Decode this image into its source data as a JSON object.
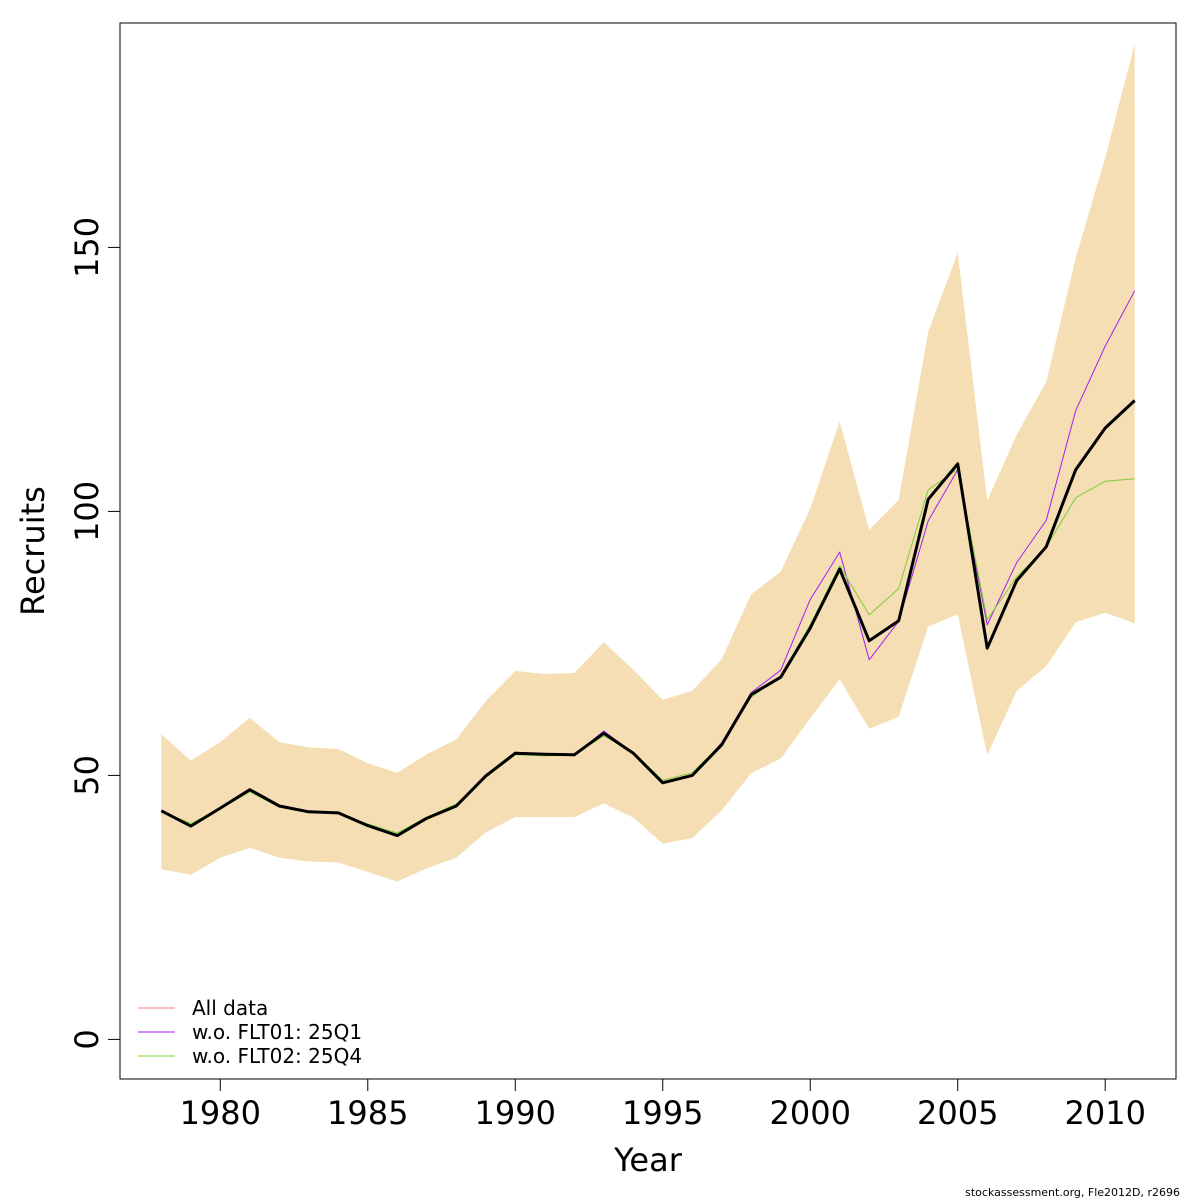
{
  "chart_data": {
    "type": "line",
    "xlabel": "Year",
    "ylabel": "Recruits",
    "xlim": [
      1976.6,
      2012.4
    ],
    "ylim": [
      -7.5,
      192.5
    ],
    "x_ticks": [
      1980,
      1985,
      1990,
      1995,
      2000,
      2005,
      2010
    ],
    "y_ticks": [
      0,
      50,
      100,
      150
    ],
    "x": [
      1978,
      1979,
      1980,
      1981,
      1982,
      1983,
      1984,
      1985,
      1986,
      1987,
      1988,
      1989,
      1990,
      1991,
      1992,
      1993,
      1994,
      1995,
      1996,
      1997,
      1998,
      1999,
      2000,
      2001,
      2002,
      2003,
      2004,
      2005,
      2006,
      2007,
      2008,
      2009,
      2010,
      2011
    ],
    "band": {
      "color": "#F5DEB3",
      "upper": [
        57.8,
        52.8,
        56.3,
        60.9,
        56.3,
        55.3,
        55.0,
        52.3,
        50.5,
        54.0,
        56.8,
        64.1,
        69.8,
        69.2,
        69.4,
        75.2,
        70.0,
        64.3,
        66.0,
        72.0,
        84.3,
        88.6,
        100.5,
        117.0,
        96.5,
        102.2,
        134.0,
        149.0,
        102.0,
        114.5,
        124.5,
        148.0,
        167.0,
        188.5
      ],
      "lower": [
        32.2,
        31.2,
        34.4,
        36.3,
        34.4,
        33.7,
        33.5,
        31.7,
        29.9,
        32.4,
        34.4,
        39.2,
        42.1,
        42.1,
        42.1,
        44.7,
        42.0,
        37.1,
        38.1,
        43.4,
        50.4,
        53.2,
        60.8,
        68.2,
        58.8,
        61.1,
        78.2,
        80.5,
        53.8,
        66.0,
        70.7,
        79.0,
        80.8,
        78.8
      ]
    },
    "series": [
      {
        "name": "All data",
        "color": "#F08080",
        "values": [
          43.3,
          40.4,
          43.8,
          47.3,
          44.2,
          43.1,
          42.9,
          40.5,
          38.6,
          41.9,
          44.2,
          49.9,
          54.2,
          54.0,
          53.9,
          58.0,
          54.2,
          48.6,
          50.0,
          55.8,
          65.3,
          68.6,
          77.9,
          89.1,
          75.5,
          79.3,
          102.3,
          109.0,
          74.1,
          86.9,
          93.3,
          107.9,
          115.8,
          121.0
        ]
      },
      {
        "name": "w.o. FLT01: 25Q1",
        "color": "#A020F0",
        "values": [
          43.2,
          40.4,
          43.9,
          47.4,
          44.2,
          43.1,
          42.9,
          40.5,
          38.7,
          42.0,
          44.3,
          49.9,
          54.4,
          54.1,
          53.8,
          58.4,
          54.2,
          48.6,
          50.1,
          56.2,
          65.7,
          69.9,
          83.3,
          92.3,
          71.9,
          79.2,
          98.2,
          107.9,
          78.5,
          90.3,
          98.3,
          119.1,
          131.3,
          141.8
        ]
      },
      {
        "name": "w.o. FLT02: 25Q4",
        "color": "#7CCD3A",
        "values": [
          43.2,
          40.9,
          43.7,
          46.9,
          44.0,
          42.9,
          42.8,
          40.8,
          39.1,
          42.1,
          44.6,
          49.6,
          53.9,
          53.7,
          53.9,
          57.5,
          54.3,
          49.1,
          50.5,
          56.0,
          64.8,
          68.9,
          78.5,
          89.7,
          80.4,
          85.4,
          104.1,
          108.0,
          79.5,
          87.6,
          93.2,
          102.6,
          105.7,
          106.2
        ]
      },
      {
        "name": "",
        "color": "#000000",
        "values": [
          43.3,
          40.4,
          43.8,
          47.3,
          44.2,
          43.1,
          42.9,
          40.5,
          38.6,
          41.9,
          44.2,
          49.9,
          54.2,
          54.0,
          53.9,
          58.0,
          54.2,
          48.6,
          50.0,
          55.8,
          65.3,
          68.6,
          77.9,
          89.1,
          75.5,
          79.3,
          102.3,
          109.0,
          74.1,
          86.9,
          93.3,
          107.9,
          115.8,
          121.0
        ]
      }
    ],
    "legend": {
      "placement": "bottom-left",
      "entries": [
        "All data",
        "w.o. FLT01: 25Q1",
        "w.o. FLT02: 25Q4"
      ]
    },
    "grid": false
  },
  "footer": {
    "credit": "stockassessment.org, Fle2012D, r2696"
  }
}
